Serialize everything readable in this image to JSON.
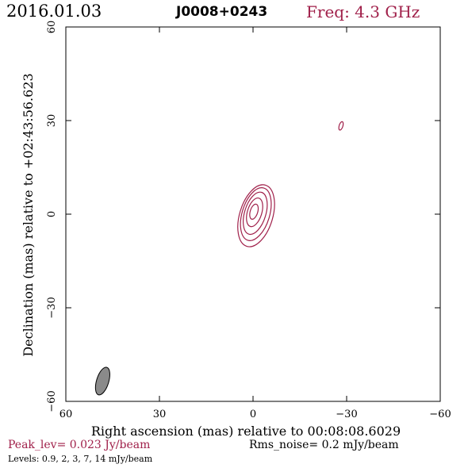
{
  "header": {
    "date": "2016.01.03",
    "source": "J0008+0243",
    "freq": "Freq: 4.3 GHz"
  },
  "footer": {
    "peak": "Peak_lev=  0.023 Jy/beam",
    "rms": "Rms_noise=   0.2 mJy/beam",
    "levels": "Levels: 0.9,    2,    3,    7,   14 mJy/beam"
  },
  "colors": {
    "contour": "#a0204a",
    "beam_fill": "#8a8a8a",
    "axes": "#000000"
  },
  "chart_data": {
    "type": "contour",
    "xlabel": "Right ascension (mas) relative to 00:08:08.6029",
    "ylabel": "Declination (mas) relative to +02:43:56.623",
    "xlim": [
      60,
      -60
    ],
    "ylim": [
      -60,
      60
    ],
    "xticks": [
      60,
      30,
      0,
      -30,
      -60
    ],
    "yticks": [
      -60,
      -30,
      0,
      30,
      60
    ],
    "xtick_labels": [
      "60",
      "30",
      "0",
      "−30",
      "−60"
    ],
    "ytick_labels": [
      "−60",
      "−30",
      "0",
      "30",
      "60"
    ],
    "contours": [
      {
        "level": 0.9,
        "x0": -1.0,
        "y0": -0.5,
        "major": 20.5,
        "minor": 10.6,
        "pa": 17
      },
      {
        "level": 2,
        "x0": -0.9,
        "y0": 0.0,
        "major": 17.5,
        "minor": 8.8,
        "pa": 17
      },
      {
        "level": 3,
        "x0": -0.7,
        "y0": 0.3,
        "major": 14.0,
        "minor": 6.8,
        "pa": 17
      },
      {
        "level": 7,
        "x0": -0.5,
        "y0": 0.6,
        "major": 9.5,
        "minor": 4.6,
        "pa": 17
      },
      {
        "level": 14,
        "x0": -0.3,
        "y0": 0.8,
        "major": 5.0,
        "minor": 2.4,
        "pa": 17
      },
      {
        "level": 0.9,
        "x0": -28.2,
        "y0": 28.3,
        "major": 2.8,
        "minor": 1.2,
        "pa": 17
      }
    ],
    "beam": {
      "x0": 48.2,
      "y0": -53.5,
      "major": 9.2,
      "minor": 3.9,
      "pa": 17
    }
  }
}
